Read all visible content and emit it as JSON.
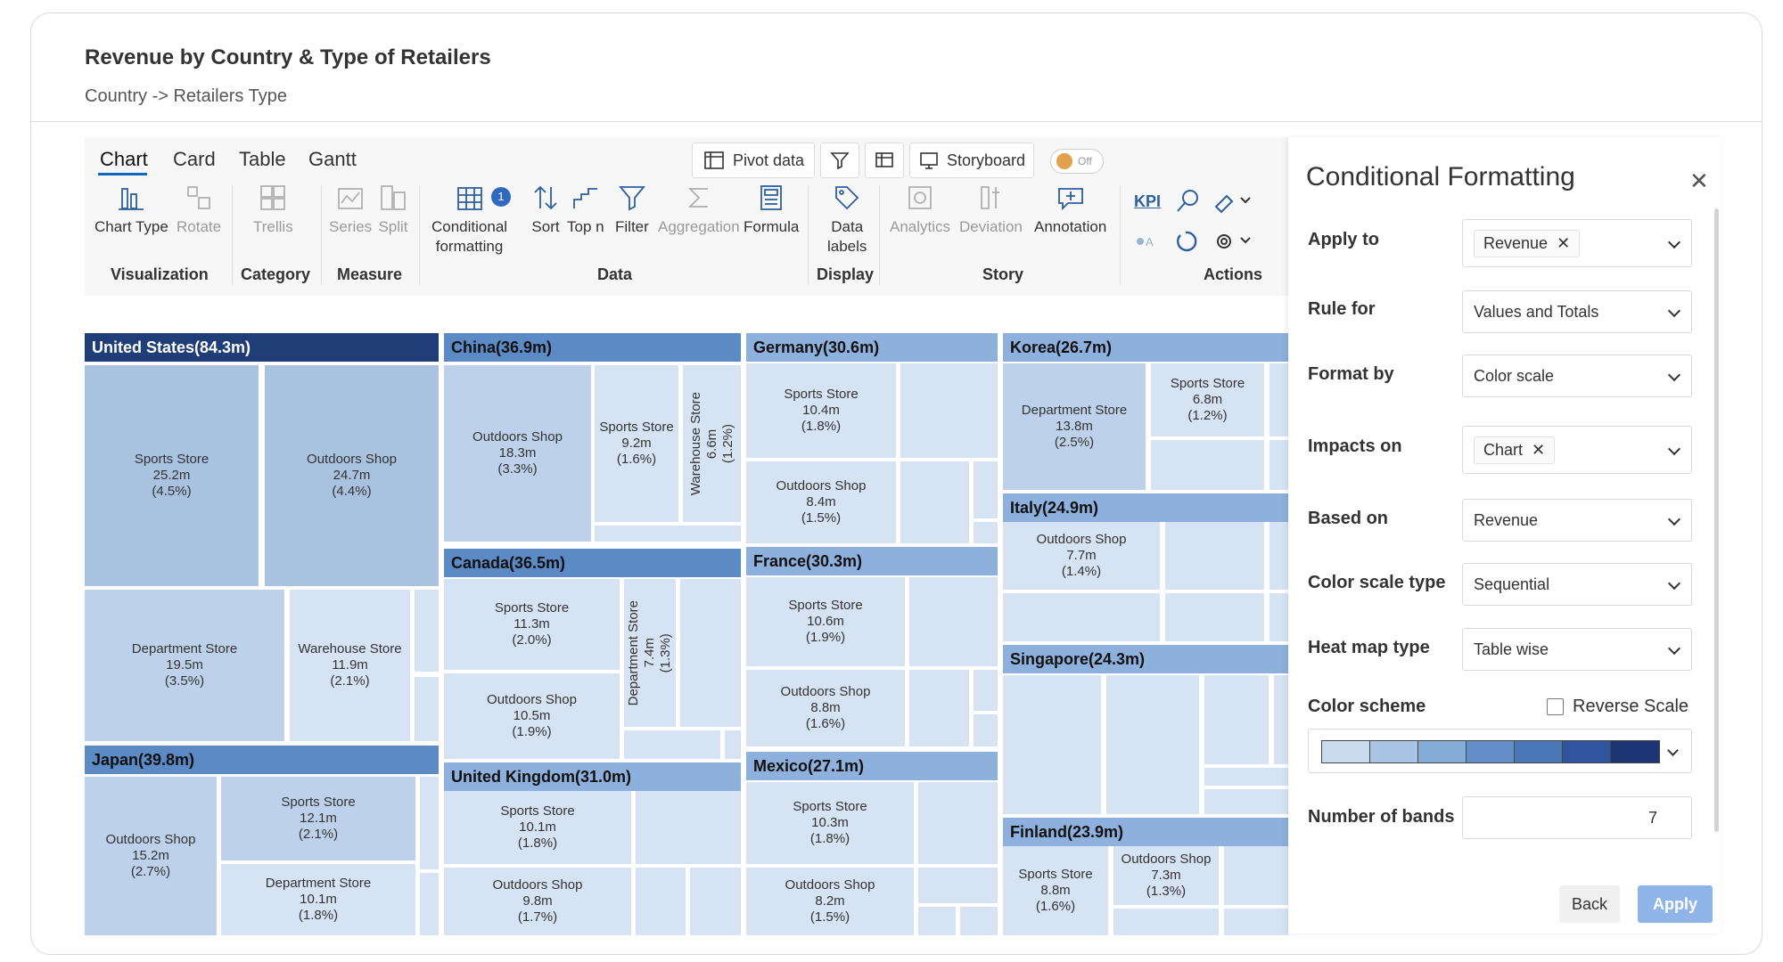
{
  "header": {
    "title": "Revenue by Country & Type of Retailers",
    "subtitle": "Country -> Retailers Type"
  },
  "tabs": [
    {
      "label": "Chart"
    },
    {
      "label": "Card"
    },
    {
      "label": "Table"
    },
    {
      "label": "Gantt"
    }
  ],
  "toolbar": {
    "pivot_label": "Pivot data",
    "storyboard_label": "Storyboard",
    "toggle_label": "Off",
    "tools": {
      "chart_type": "Chart Type",
      "rotate": "Rotate",
      "trellis": "Trellis",
      "series": "Series",
      "split": "Split",
      "conditional_1": "Conditional",
      "conditional_2": "formatting",
      "conditional_badge": "1",
      "sort": "Sort",
      "top_n": "Top n",
      "filter": "Filter",
      "aggregation": "Aggregation",
      "formula": "Formula",
      "data_labels_1": "Data",
      "data_labels_2": "labels",
      "analytics": "Analytics",
      "deviation": "Deviation",
      "annotation": "Annotation",
      "kpi": "KPI"
    },
    "groups": {
      "visualization": "Visualization",
      "category": "Category",
      "measure": "Measure",
      "data": "Data",
      "display": "Display",
      "story": "Story",
      "actions": "Actions"
    }
  },
  "treemap": {
    "colors": {
      "header_dark": "#1f3e78",
      "header_mid": "#5b8ac4",
      "header_light": "#8db0dc",
      "cell_dark": "#a9c2e0",
      "cell_mid": "#bdd1ea",
      "cell_light": "#d6e3f3"
    },
    "countries": [
      {
        "name": "United States(84.3m)",
        "cells": [
          {
            "label": "Sports Store",
            "value": "25.2m",
            "pct": "(4.5%)"
          },
          {
            "label": "Outdoors Shop",
            "value": "24.7m",
            "pct": "(4.4%)"
          },
          {
            "label": "Department Store",
            "value": "19.5m",
            "pct": "(3.5%)"
          },
          {
            "label": "Warehouse Store",
            "value": "11.9m",
            "pct": "(2.1%)"
          }
        ]
      },
      {
        "name": "Japan(39.8m)",
        "cells": [
          {
            "label": "Outdoors Shop",
            "value": "15.2m",
            "pct": "(2.7%)"
          },
          {
            "label": "Sports Store",
            "value": "12.1m",
            "pct": "(2.1%)"
          },
          {
            "label": "Department Store",
            "value": "10.1m",
            "pct": "(1.8%)"
          }
        ]
      },
      {
        "name": "China(36.9m)",
        "cells": [
          {
            "label": "Outdoors Shop",
            "value": "18.3m",
            "pct": "(3.3%)"
          },
          {
            "label": "Sports Store",
            "value": "9.2m",
            "pct": "(1.6%)"
          },
          {
            "label": "Warehouse Store",
            "value": "6.6m",
            "pct": "(1.2%)"
          }
        ]
      },
      {
        "name": "Canada(36.5m)",
        "cells": [
          {
            "label": "Sports Store",
            "value": "11.3m",
            "pct": "(2.0%)"
          },
          {
            "label": "Department Store",
            "value": "7.4m",
            "pct": "(1.3%)"
          },
          {
            "label": "Outdoors Shop",
            "value": "10.5m",
            "pct": "(1.9%)"
          }
        ]
      },
      {
        "name": "United Kingdom(31.0m)",
        "cells": [
          {
            "label": "Sports Store",
            "value": "10.1m",
            "pct": "(1.8%)"
          },
          {
            "label": "Outdoors Shop",
            "value": "9.8m",
            "pct": "(1.7%)"
          }
        ]
      },
      {
        "name": "Germany(30.6m)",
        "cells": [
          {
            "label": "Sports Store",
            "value": "10.4m",
            "pct": "(1.8%)"
          },
          {
            "label": "Outdoors Shop",
            "value": "8.4m",
            "pct": "(1.5%)"
          }
        ]
      },
      {
        "name": "France(30.3m)",
        "cells": [
          {
            "label": "Sports Store",
            "value": "10.6m",
            "pct": "(1.9%)"
          },
          {
            "label": "Outdoors Shop",
            "value": "8.8m",
            "pct": "(1.6%)"
          }
        ]
      },
      {
        "name": "Mexico(27.1m)",
        "cells": [
          {
            "label": "Sports Store",
            "value": "10.3m",
            "pct": "(1.8%)"
          },
          {
            "label": "Outdoors Shop",
            "value": "8.2m",
            "pct": "(1.5%)"
          }
        ]
      },
      {
        "name": "Korea(26.7m)",
        "cells": [
          {
            "label": "Department Store",
            "value": "13.8m",
            "pct": "(2.5%)"
          },
          {
            "label": "Sports Store",
            "value": "6.8m",
            "pct": "(1.2%)"
          }
        ]
      },
      {
        "name": "Italy(24.9m)",
        "cells": [
          {
            "label": "Outdoors Shop",
            "value": "7.7m",
            "pct": "(1.4%)"
          }
        ]
      },
      {
        "name": "Singapore(24.3m)",
        "cells": []
      },
      {
        "name": "Finland(23.9m)",
        "cells": [
          {
            "label": "Sports Store",
            "value": "8.8m",
            "pct": "(1.6%)"
          },
          {
            "label": "Outdoors Shop",
            "value": "7.3m",
            "pct": "(1.3%)"
          }
        ]
      }
    ]
  },
  "panel": {
    "title": "Conditional Formatting",
    "apply_to": {
      "label": "Apply to",
      "chip": "Revenue"
    },
    "rule_for": {
      "label": "Rule for",
      "value": "Values and Totals"
    },
    "format_by": {
      "label": "Format by",
      "value": "Color scale"
    },
    "impacts_on": {
      "label": "Impacts on",
      "chip": "Chart"
    },
    "based_on": {
      "label": "Based on",
      "value": "Revenue"
    },
    "color_scale_type": {
      "label": "Color scale type",
      "value": "Sequential"
    },
    "heat_map_type": {
      "label": "Heat map type",
      "value": "Table wise"
    },
    "color_scheme": {
      "label": "Color scheme",
      "reverse_label": "Reverse Scale",
      "reverse_checked": false,
      "swatches": [
        "#c9d9ee",
        "#a9c4e4",
        "#86acd8",
        "#628fc8",
        "#4a77b8",
        "#2f559f",
        "#1d3575"
      ]
    },
    "number_of_bands": {
      "label": "Number of bands",
      "value": "7"
    },
    "back_label": "Back",
    "apply_label": "Apply"
  }
}
